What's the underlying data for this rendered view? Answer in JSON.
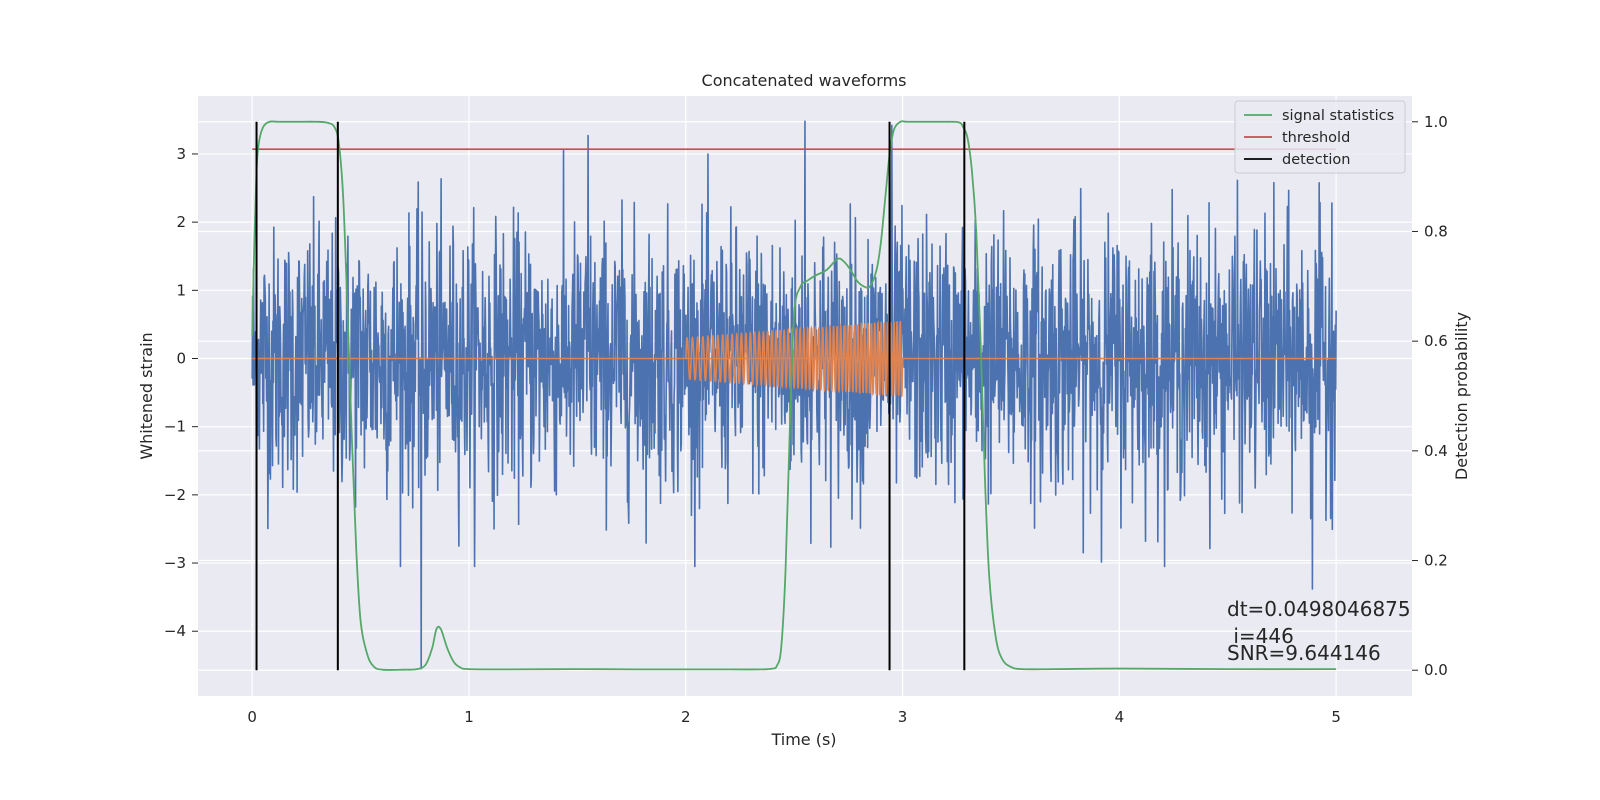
{
  "chart_data": {
    "type": "line",
    "title": "Concatenated waveforms",
    "xlabel": "Time (s)",
    "ylabel": "Whitened strain",
    "y2label": "Detection probability",
    "xlim": [
      -0.25,
      5.35
    ],
    "ylim": [
      -4.95,
      3.85
    ],
    "y2lim": [
      -0.047,
      1.047
    ],
    "xticks": [
      0,
      1,
      2,
      3,
      4,
      5
    ],
    "yticks": [
      -4,
      -3,
      -2,
      -1,
      0,
      1,
      2,
      3
    ],
    "y2ticks": [
      0.0,
      0.2,
      0.4,
      0.6,
      0.8,
      1.0
    ],
    "y2tick_labels": [
      "0.0",
      "0.2",
      "0.4",
      "0.6",
      "0.8",
      "1.0"
    ],
    "ytick_labels": [
      "−4",
      "−3",
      "−2",
      "−1",
      "0",
      "1",
      "2",
      "3"
    ],
    "grid": true,
    "legend_position": "top-right",
    "series": [
      {
        "name": "",
        "axis": "left",
        "kind": "noise",
        "color": "#4c72b0",
        "x_range": [
          0,
          5
        ],
        "samples": 2560,
        "amplitude_std": 0.95,
        "peaks": [
          {
            "x": 0.78,
            "y": -4.55
          },
          {
            "x": 2.55,
            "y": 3.48
          },
          {
            "x": 2.95,
            "y": 3.42
          },
          {
            "x": 1.55,
            "y": 3.27
          },
          {
            "x": 4.89,
            "y": -3.38
          },
          {
            "x": 4.98,
            "y": 2.28
          }
        ]
      },
      {
        "name": "",
        "axis": "left",
        "kind": "chirp",
        "color": "#dd8452",
        "x_range": [
          2.0,
          3.0
        ],
        "baseline_x_range": [
          0,
          5
        ],
        "amplitude_start": 0.3,
        "amplitude_end": 0.55,
        "freq_start": 40,
        "freq_end": 70
      },
      {
        "name": "signal statistics",
        "axis": "right",
        "color": "#55a868",
        "x": [
          0.0,
          0.01,
          0.02,
          0.03,
          0.05,
          0.08,
          0.12,
          0.2,
          0.3,
          0.35,
          0.38,
          0.4,
          0.42,
          0.44,
          0.46,
          0.48,
          0.5,
          0.53,
          0.56,
          0.6,
          0.7,
          0.76,
          0.8,
          0.83,
          0.85,
          0.87,
          0.9,
          0.93,
          0.96,
          1.0,
          1.2,
          1.5,
          1.8,
          2.0,
          2.2,
          2.35,
          2.4,
          2.42,
          2.44,
          2.46,
          2.48,
          2.5,
          2.53,
          2.56,
          2.6,
          2.65,
          2.7,
          2.73,
          2.76,
          2.79,
          2.82,
          2.85,
          2.88,
          2.9,
          2.92,
          2.94,
          2.96,
          2.99,
          3.02,
          3.1,
          3.2,
          3.26,
          3.28,
          3.3,
          3.32,
          3.34,
          3.36,
          3.38,
          3.4,
          3.43,
          3.46,
          3.5,
          3.55,
          3.7,
          4.0,
          4.5,
          5.0
        ],
        "values": [
          0.61,
          0.78,
          0.91,
          0.96,
          0.99,
          1.0,
          1.0,
          1.0,
          1.0,
          0.998,
          0.99,
          0.96,
          0.86,
          0.65,
          0.42,
          0.22,
          0.09,
          0.03,
          0.007,
          0.001,
          0.001,
          0.002,
          0.01,
          0.04,
          0.075,
          0.075,
          0.04,
          0.015,
          0.005,
          0.002,
          0.0015,
          0.002,
          0.0015,
          0.0015,
          0.0015,
          0.0015,
          0.003,
          0.008,
          0.04,
          0.18,
          0.44,
          0.65,
          0.7,
          0.71,
          0.72,
          0.73,
          0.75,
          0.745,
          0.73,
          0.71,
          0.7,
          0.7,
          0.73,
          0.78,
          0.86,
          0.94,
          0.985,
          1.0,
          1.0,
          1.0,
          1.0,
          0.999,
          0.99,
          0.97,
          0.91,
          0.8,
          0.6,
          0.35,
          0.17,
          0.06,
          0.02,
          0.006,
          0.002,
          0.002,
          0.003,
          0.002,
          0.002
        ]
      },
      {
        "name": "threshold",
        "axis": "right",
        "color": "#c44e52",
        "x": [
          0,
          5
        ],
        "values": [
          0.95,
          0.95
        ]
      },
      {
        "name": "detection",
        "axis": "right",
        "kind": "vlines",
        "color": "#000000",
        "x": [
          0.02,
          0.395,
          2.94,
          3.285
        ],
        "y_range": [
          0.0,
          1.0
        ]
      }
    ],
    "annotations": [
      "dt=0.0498046875",
      " i=446",
      "SNR=9.644146"
    ]
  }
}
